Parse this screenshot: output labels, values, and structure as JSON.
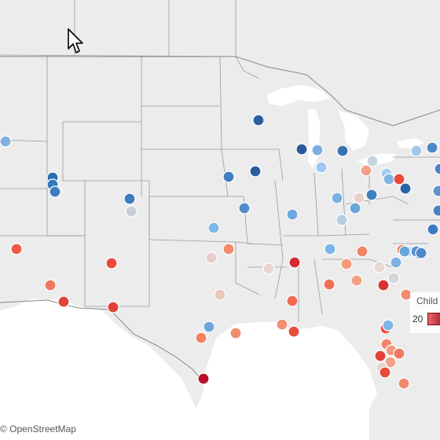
{
  "map": {
    "attribution": "© OpenStreetMap",
    "land_color": "#ececec",
    "water_color": "#ffffff",
    "border_color": "#9a9a9a"
  },
  "legend": {
    "title": "Child",
    "min_label": "20",
    "ramp_low": "#e36b6b",
    "ramp_high": "#b0122d"
  },
  "markers": [
    {
      "name": "marker-northwest",
      "color": "#7fb1e0"
    },
    {
      "name": "marker-utah-1",
      "color": "#2b6fb2"
    },
    {
      "name": "marker-utah-2",
      "color": "#3978b8"
    },
    {
      "name": "marker-utah-3",
      "color": "#3f7fbd"
    },
    {
      "name": "marker-colorado-1",
      "color": "#3d7cbd"
    },
    {
      "name": "marker-colorado-2",
      "color": "#c9cfd4"
    },
    {
      "name": "marker-minnesota",
      "color": "#2b5f9e"
    },
    {
      "name": "marker-wisconsin-1",
      "color": "#2a5a98"
    },
    {
      "name": "marker-wisconsin-2",
      "color": "#7aaee0"
    },
    {
      "name": "marker-michigan-1",
      "color": "#3a72b2"
    },
    {
      "name": "marker-michigan-2",
      "color": "#9ec8ef"
    },
    {
      "name": "marker-iowa-1",
      "color": "#3e7fc0"
    },
    {
      "name": "marker-iowa-2",
      "color": "#2c5e9f"
    },
    {
      "name": "marker-missouri",
      "color": "#4f8cc9"
    },
    {
      "name": "marker-illinois",
      "color": "#6da7dd"
    },
    {
      "name": "marker-kansas",
      "color": "#7fb7e8"
    },
    {
      "name": "marker-california",
      "color": "#ee5c46"
    },
    {
      "name": "marker-new-mexico",
      "color": "#e8493a"
    },
    {
      "name": "marker-arizona-1",
      "color": "#f0785e"
    },
    {
      "name": "marker-arizona-2",
      "color": "#e0433a"
    },
    {
      "name": "marker-texas-west",
      "color": "#e04036"
    },
    {
      "name": "marker-oklahoma-1",
      "color": "#e6cfca"
    },
    {
      "name": "marker-oklahoma-2",
      "color": "#f28b6c"
    },
    {
      "name": "marker-texas-north",
      "color": "#ecc7bd"
    },
    {
      "name": "marker-texas-east",
      "color": "#6fa6dc"
    },
    {
      "name": "marker-texas-central",
      "color": "#f4825f"
    },
    {
      "name": "marker-texas-houston",
      "color": "#f28d72"
    },
    {
      "name": "marker-texas-south",
      "color": "#b81028"
    },
    {
      "name": "marker-arkansas",
      "color": "#e9d6d2"
    },
    {
      "name": "marker-mississippi-1",
      "color": "#d42a30"
    },
    {
      "name": "marker-louisiana-1",
      "color": "#f06a52"
    },
    {
      "name": "marker-louisiana-2",
      "color": "#f28e72"
    },
    {
      "name": "marker-louisiana-3",
      "color": "#e84c3c"
    },
    {
      "name": "marker-tennessee-1",
      "color": "#7fb4e6"
    },
    {
      "name": "marker-tennessee-2",
      "color": "#f29a7a"
    },
    {
      "name": "marker-alabama-1",
      "color": "#f07055"
    },
    {
      "name": "marker-alabama-2",
      "color": "#f2a186"
    },
    {
      "name": "marker-georgia-1",
      "color": "#d83232"
    },
    {
      "name": "marker-georgia-2",
      "color": "#e9d8d4"
    },
    {
      "name": "marker-carolina-1",
      "color": "#d3d7db"
    },
    {
      "name": "marker-carolina-2",
      "color": "#f0836a"
    },
    {
      "name": "marker-carolina-3",
      "color": "#7fb1e2"
    },
    {
      "name": "marker-carolina-4",
      "color": "#f07a5e"
    },
    {
      "name": "marker-virginia-1",
      "color": "#a9cdee"
    },
    {
      "name": "marker-virginia-2",
      "color": "#2f66a8"
    },
    {
      "name": "marker-ohio-1",
      "color": "#7ab0e3"
    },
    {
      "name": "marker-ohio-2",
      "color": "#e8d0cc"
    },
    {
      "name": "marker-ohio-3",
      "color": "#3f80c1"
    },
    {
      "name": "marker-indiana-1",
      "color": "#6aa5dc"
    },
    {
      "name": "marker-indiana-2",
      "color": "#b6cde3"
    },
    {
      "name": "marker-pennsylvania-1",
      "color": "#f1a08a"
    },
    {
      "name": "marker-pennsylvania-2",
      "color": "#a6cbee"
    },
    {
      "name": "marker-pennsylvania-3",
      "color": "#7fb6e6"
    },
    {
      "name": "marker-pennsylvania-4",
      "color": "#e84a3c"
    },
    {
      "name": "marker-pennsylvania-5",
      "color": "#2d64a6"
    },
    {
      "name": "marker-pennsylvania-6",
      "color": "#4b88c7"
    },
    {
      "name": "marker-ny-1",
      "color": "#c8d4de"
    },
    {
      "name": "marker-ny-2",
      "color": "#a3c8ec"
    },
    {
      "name": "marker-ny-3",
      "color": "#5895d1"
    },
    {
      "name": "marker-ny-4",
      "color": "#3d7bbd"
    },
    {
      "name": "marker-ny-5",
      "color": "#4683c3"
    },
    {
      "name": "marker-ny-6",
      "color": "#4a88c8"
    },
    {
      "name": "marker-florida-1",
      "color": "#f28a6e"
    },
    {
      "name": "marker-florida-2",
      "color": "#f04b3c"
    },
    {
      "name": "marker-florida-3",
      "color": "#f2836a"
    },
    {
      "name": "marker-florida-4",
      "color": "#f29a80"
    },
    {
      "name": "marker-florida-5",
      "color": "#e3413a"
    },
    {
      "name": "marker-florida-6",
      "color": "#f2a08a"
    },
    {
      "name": "marker-florida-7",
      "color": "#e8d2cf"
    },
    {
      "name": "marker-florida-8",
      "color": "#e84a3c"
    },
    {
      "name": "marker-florida-9",
      "color": "#f07a5e"
    },
    {
      "name": "marker-florida-10",
      "color": "#f08a6e"
    },
    {
      "name": "marker-florida-11",
      "color": "#7fb6e6"
    },
    {
      "name": "marker-georgia-3",
      "color": "#6aa5dc"
    },
    {
      "name": "marker-virginia-3",
      "color": "#5392d0"
    },
    {
      "name": "marker-east-edge-1",
      "color": "#4b88c7"
    },
    {
      "name": "marker-east-edge-2",
      "color": "#3f80c1"
    }
  ]
}
